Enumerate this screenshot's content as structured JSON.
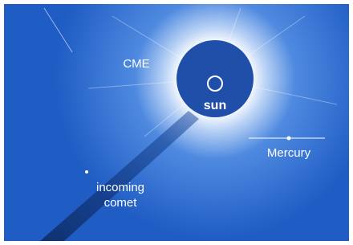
{
  "labels": {
    "cme": "CME",
    "sun": "sun",
    "mercury": "Mercury",
    "comet": "incoming comet"
  }
}
